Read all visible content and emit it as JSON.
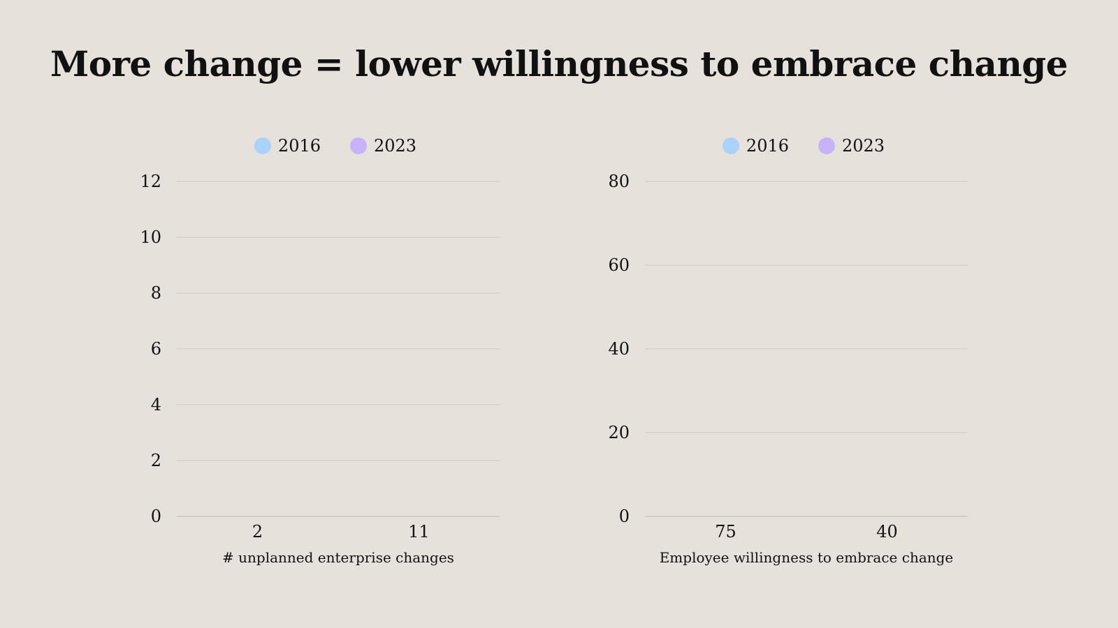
{
  "slide": {
    "title": "More change = lower willingness to embrace change"
  },
  "colors": {
    "background": "#e6e1db",
    "series_2016": "#a9d3fb",
    "series_2023": "#c8b2fa",
    "grid": "#cfcac3"
  },
  "chart_data": [
    {
      "type": "bar",
      "title": "",
      "categories": [
        "2",
        "11"
      ],
      "series": [
        {
          "name": "2016",
          "values": [
            0,
            0
          ]
        },
        {
          "name": "2023",
          "values": [
            0,
            0
          ]
        }
      ],
      "xlabel": "# unplanned enterprise changes",
      "ylabel": "",
      "ylim": [
        0,
        12
      ],
      "yticks": [
        0,
        2,
        4,
        6,
        8,
        10,
        12
      ],
      "grid": true,
      "legend": "top-center"
    },
    {
      "type": "bar",
      "title": "",
      "categories": [
        "75",
        "40"
      ],
      "series": [
        {
          "name": "2016",
          "values": [
            0,
            0
          ]
        },
        {
          "name": "2023",
          "values": [
            0,
            0
          ]
        }
      ],
      "xlabel": "Employee willingness to embrace change",
      "ylabel": "",
      "ylim": [
        0,
        80
      ],
      "yticks": [
        0,
        20,
        40,
        60,
        80
      ],
      "grid": true,
      "legend": "top-center"
    }
  ]
}
